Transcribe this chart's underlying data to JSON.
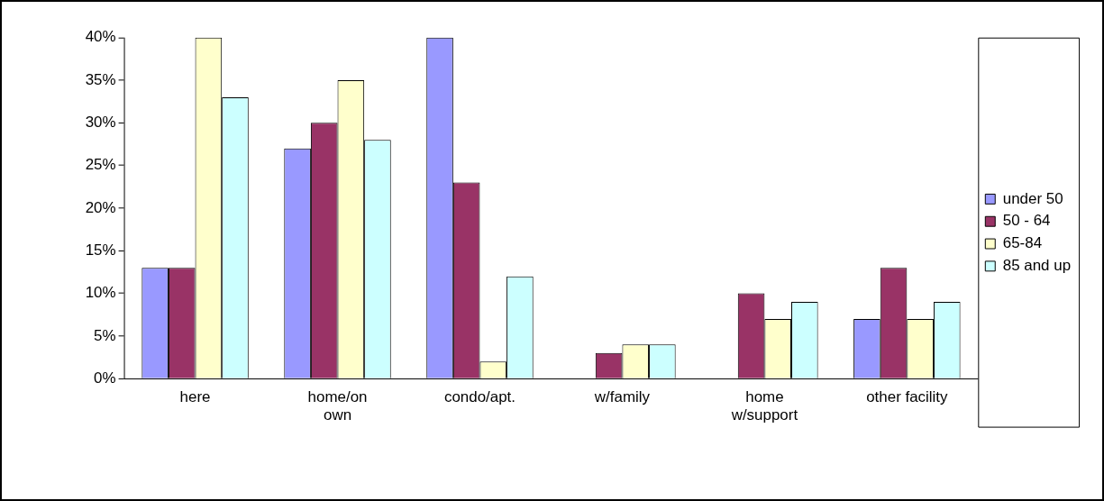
{
  "chart_data": {
    "type": "bar",
    "categories": [
      "here",
      "home/on\nown",
      "condo/apt.",
      "w/family",
      "home\nw/support",
      "other facility"
    ],
    "series": [
      {
        "name": "under 50",
        "color": "#9999ff",
        "values": [
          13,
          27,
          40,
          0,
          0,
          7
        ]
      },
      {
        "name": "50 - 64",
        "color": "#993366",
        "values": [
          13,
          30,
          23,
          3,
          10,
          13
        ]
      },
      {
        "name": "65-84",
        "color": "#ffffcc",
        "values": [
          40,
          35,
          2,
          4,
          7,
          7
        ]
      },
      {
        "name": "85 and up",
        "color": "#ccffff",
        "values": [
          33,
          28,
          12,
          4,
          9,
          9
        ]
      }
    ],
    "ylim": [
      0,
      40
    ],
    "yticks": [
      {
        "value": 0,
        "label": "0%"
      },
      {
        "value": 5,
        "label": "5%"
      },
      {
        "value": 10,
        "label": "10%"
      },
      {
        "value": 15,
        "label": "15%"
      },
      {
        "value": 20,
        "label": "20%"
      },
      {
        "value": 25,
        "label": "25%"
      },
      {
        "value": 30,
        "label": "30%"
      },
      {
        "value": 35,
        "label": "35%"
      },
      {
        "value": 40,
        "label": "40%"
      }
    ],
    "grid": false,
    "legend": "right"
  }
}
